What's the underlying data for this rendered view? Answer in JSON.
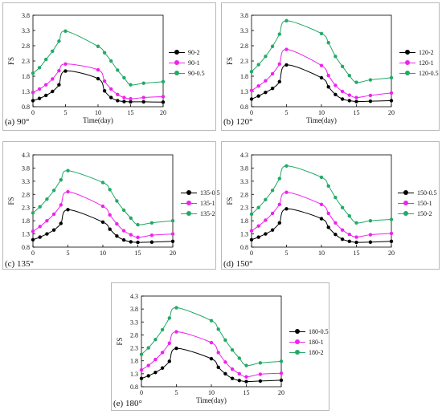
{
  "chart_data": [
    {
      "panel_label": "(a) 90°",
      "type": "line",
      "xlabel": "Time(day)",
      "ylabel": "FS",
      "xlim": [
        0,
        20
      ],
      "ylim": [
        0.8,
        3.8
      ],
      "xticks": [
        "0",
        "5",
        "10",
        "15",
        "20"
      ],
      "yticks": [
        "0.8",
        "1.3",
        "1.8",
        "2.3",
        "2.8",
        "3.3",
        "3.8"
      ],
      "grid": false,
      "legend_position": "right",
      "x": [
        0,
        1,
        2,
        3,
        4,
        5,
        10,
        11,
        12,
        13,
        14,
        15,
        17,
        20
      ],
      "series": [
        {
          "name": "90-2",
          "color": "#000000",
          "values": [
            1.0,
            1.07,
            1.17,
            1.3,
            1.52,
            1.97,
            1.72,
            1.32,
            1.1,
            1.0,
            0.97,
            0.96,
            0.96,
            0.95
          ]
        },
        {
          "name": "90-1",
          "color": "#ee22ee",
          "values": [
            1.27,
            1.38,
            1.52,
            1.71,
            1.98,
            2.2,
            2.01,
            1.64,
            1.38,
            1.2,
            1.1,
            1.06,
            1.1,
            1.13
          ]
        },
        {
          "name": "90-0.5",
          "color": "#22aa66",
          "values": [
            1.9,
            2.08,
            2.35,
            2.62,
            2.95,
            3.28,
            2.78,
            2.57,
            2.3,
            2.0,
            1.75,
            1.52,
            1.57,
            1.62
          ]
        }
      ]
    },
    {
      "panel_label": "(b) 120°",
      "type": "line",
      "xlabel": "Time(day)",
      "ylabel": "FS",
      "xlim": [
        0,
        20
      ],
      "ylim": [
        0.8,
        3.8
      ],
      "xticks": [
        "0",
        "5",
        "10",
        "15",
        "20"
      ],
      "yticks": [
        "0.8",
        "1.3",
        "1.8",
        "2.3",
        "2.8",
        "3.3",
        "3.8"
      ],
      "grid": false,
      "legend_position": "right",
      "x": [
        0,
        1,
        2,
        3,
        4,
        5,
        10,
        11,
        12,
        13,
        14,
        15,
        17,
        20
      ],
      "series": [
        {
          "name": "120-2",
          "color": "#000000",
          "values": [
            1.05,
            1.15,
            1.27,
            1.4,
            1.62,
            2.17,
            1.75,
            1.45,
            1.2,
            1.05,
            1.0,
            0.97,
            0.98,
            1.0
          ]
        },
        {
          "name": "120-1",
          "color": "#ee22ee",
          "values": [
            1.33,
            1.48,
            1.65,
            1.88,
            2.2,
            2.68,
            2.15,
            1.82,
            1.5,
            1.3,
            1.18,
            1.1,
            1.17,
            1.25
          ]
        },
        {
          "name": "120-0.5",
          "color": "#22aa66",
          "values": [
            1.95,
            2.18,
            2.45,
            2.78,
            3.18,
            3.62,
            3.2,
            2.9,
            2.45,
            2.12,
            1.82,
            1.6,
            1.68,
            1.75
          ]
        }
      ]
    },
    {
      "panel_label": "(c) 135°",
      "type": "line",
      "xlabel": "",
      "ylabel": "FS",
      "xlim": [
        0,
        20
      ],
      "ylim": [
        0.8,
        4.3
      ],
      "xticks": [
        "0",
        "5",
        "10",
        "15",
        "20"
      ],
      "yticks": [
        "0.8",
        "1.3",
        "1.8",
        "2.3",
        "2.8",
        "3.3",
        "3.8",
        "4.3"
      ],
      "grid": false,
      "legend_position": "right",
      "x": [
        0,
        1,
        2,
        3,
        4,
        5,
        10,
        11,
        12,
        13,
        14,
        15,
        17,
        20
      ],
      "series": [
        {
          "name": "135-0.5",
          "color": "#000000",
          "values": [
            1.08,
            1.18,
            1.3,
            1.45,
            1.7,
            2.22,
            1.75,
            1.48,
            1.22,
            1.07,
            1.0,
            0.98,
            0.99,
            1.02
          ]
        },
        {
          "name": "135-1",
          "color": "#ee22ee",
          "values": [
            1.4,
            1.58,
            1.8,
            2.05,
            2.4,
            2.9,
            2.35,
            2.02,
            1.68,
            1.42,
            1.27,
            1.17,
            1.25,
            1.3
          ]
        },
        {
          "name": "135-2",
          "color": "#22aa66",
          "values": [
            2.1,
            2.33,
            2.62,
            2.95,
            3.35,
            3.7,
            3.25,
            2.98,
            2.55,
            2.2,
            1.9,
            1.65,
            1.72,
            1.8
          ]
        }
      ]
    },
    {
      "panel_label": "(d) 150°",
      "type": "line",
      "xlabel": "",
      "ylabel": "FS",
      "xlim": [
        0,
        20
      ],
      "ylim": [
        0.8,
        4.3
      ],
      "xticks": [
        "0",
        "5",
        "10",
        "15",
        "20"
      ],
      "yticks": [
        "0.8",
        "1.3",
        "1.8",
        "2.3",
        "2.8",
        "3.3",
        "3.8",
        "4.3"
      ],
      "grid": false,
      "legend_position": "right",
      "x": [
        0,
        1,
        2,
        3,
        4,
        5,
        10,
        11,
        12,
        13,
        14,
        15,
        17,
        20
      ],
      "series": [
        {
          "name": "150-0.5",
          "color": "#000000",
          "values": [
            1.08,
            1.18,
            1.3,
            1.45,
            1.72,
            2.25,
            1.88,
            1.55,
            1.28,
            1.1,
            1.02,
            0.98,
            0.99,
            1.02
          ]
        },
        {
          "name": "150-1",
          "color": "#ee22ee",
          "values": [
            1.42,
            1.6,
            1.82,
            2.08,
            2.42,
            2.88,
            2.42,
            2.08,
            1.72,
            1.45,
            1.28,
            1.18,
            1.27,
            1.32
          ]
        },
        {
          "name": "150-2",
          "color": "#22aa66",
          "values": [
            2.05,
            2.3,
            2.6,
            2.95,
            3.4,
            3.88,
            3.45,
            3.12,
            2.68,
            2.3,
            1.98,
            1.72,
            1.8,
            1.85
          ]
        }
      ]
    },
    {
      "panel_label": "(e) 180°",
      "type": "line",
      "xlabel": "Time(day)",
      "ylabel": "FS",
      "xlim": [
        0,
        20
      ],
      "ylim": [
        0.8,
        4.3
      ],
      "xticks": [
        "0",
        "5",
        "10",
        "15",
        "20"
      ],
      "yticks": [
        "0.8",
        "1.3",
        "1.8",
        "2.3",
        "2.8",
        "3.3",
        "3.8",
        "4.3"
      ],
      "grid": false,
      "legend_position": "right",
      "x": [
        0,
        1,
        2,
        3,
        4,
        5,
        10,
        11,
        12,
        13,
        14,
        15,
        17,
        20
      ],
      "series": [
        {
          "name": "180-0.5",
          "color": "#000000",
          "values": [
            1.12,
            1.22,
            1.35,
            1.52,
            1.78,
            2.28,
            1.88,
            1.55,
            1.3,
            1.12,
            1.04,
            1.0,
            1.02,
            1.05
          ]
        },
        {
          "name": "180-1",
          "color": "#ee22ee",
          "values": [
            1.45,
            1.62,
            1.85,
            2.12,
            2.48,
            2.92,
            2.5,
            2.12,
            1.75,
            1.48,
            1.3,
            1.18,
            1.28,
            1.32
          ]
        },
        {
          "name": "180-2",
          "color": "#22aa66",
          "values": [
            2.05,
            2.3,
            2.62,
            3.0,
            3.45,
            3.85,
            3.35,
            3.02,
            2.6,
            2.22,
            1.9,
            1.62,
            1.72,
            1.78
          ]
        }
      ]
    }
  ]
}
